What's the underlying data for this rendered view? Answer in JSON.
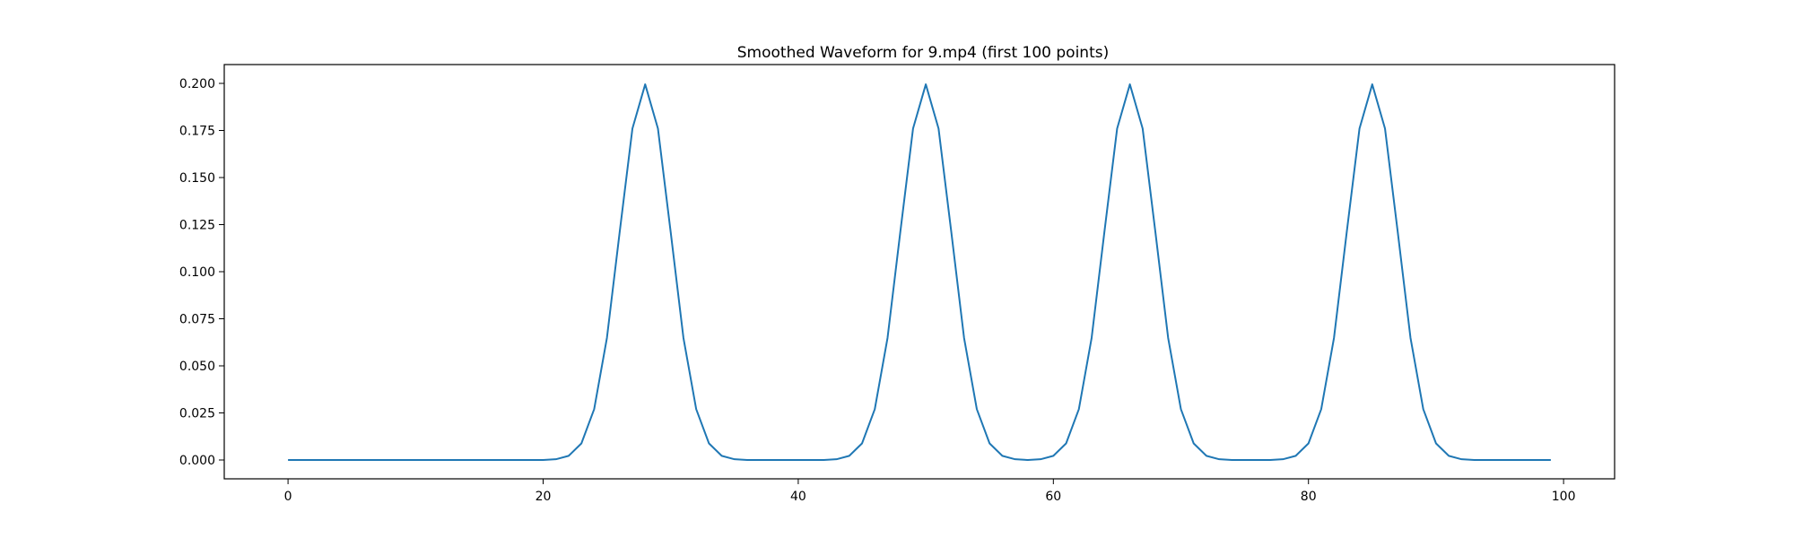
{
  "chart_data": {
    "type": "line",
    "title": "Smoothed Waveform for 9.mp4 (first 100 points)",
    "xlabel": "",
    "ylabel": "",
    "xlim": [
      -5,
      104
    ],
    "ylim": [
      -0.01,
      0.21
    ],
    "xticks": [
      0,
      20,
      40,
      60,
      80,
      100
    ],
    "xtick_labels": [
      "0",
      "20",
      "40",
      "60",
      "80",
      "100"
    ],
    "yticks": [
      0.0,
      0.025,
      0.05,
      0.075,
      0.1,
      0.125,
      0.15,
      0.175,
      0.2
    ],
    "ytick_labels": [
      "0.000",
      "0.025",
      "0.050",
      "0.075",
      "0.100",
      "0.125",
      "0.150",
      "0.175",
      "0.200"
    ],
    "grid": false,
    "series": [
      {
        "color": "#1f77b4",
        "x": [
          0,
          1,
          2,
          3,
          4,
          5,
          6,
          7,
          8,
          9,
          10,
          11,
          12,
          13,
          14,
          15,
          16,
          17,
          18,
          19,
          20,
          21,
          22,
          23,
          24,
          25,
          26,
          27,
          28,
          29,
          30,
          31,
          32,
          33,
          34,
          35,
          36,
          37,
          38,
          39,
          40,
          41,
          42,
          43,
          44,
          45,
          46,
          47,
          48,
          49,
          50,
          51,
          52,
          53,
          54,
          55,
          56,
          57,
          58,
          59,
          60,
          61,
          62,
          63,
          64,
          65,
          66,
          67,
          68,
          69,
          70,
          71,
          72,
          73,
          74,
          75,
          76,
          77,
          78,
          79,
          80,
          81,
          82,
          83,
          84,
          85,
          86,
          87,
          88,
          89,
          90,
          91,
          92,
          93,
          94,
          95,
          96,
          97,
          98,
          99
        ],
        "y": [
          0,
          0,
          0,
          0,
          0,
          0,
          0,
          0,
          0,
          0,
          0,
          0,
          0,
          0,
          0,
          0,
          0,
          0,
          0,
          0,
          0,
          0.0004,
          0.0022,
          0.0088,
          0.027,
          0.0648,
          0.121,
          0.176,
          0.1995,
          0.176,
          0.121,
          0.0648,
          0.027,
          0.0088,
          0.0022,
          0.0004,
          0,
          0,
          0,
          0,
          0,
          0,
          0,
          0.0004,
          0.0022,
          0.0088,
          0.027,
          0.0648,
          0.121,
          0.176,
          0.1995,
          0.176,
          0.121,
          0.0648,
          0.027,
          0.0088,
          0.0022,
          0.0004,
          0,
          0.0004,
          0.0022,
          0.0088,
          0.027,
          0.0648,
          0.121,
          0.176,
          0.1995,
          0.176,
          0.121,
          0.0648,
          0.027,
          0.0088,
          0.0022,
          0.0004,
          0,
          0,
          0,
          0,
          0.0004,
          0.0022,
          0.0088,
          0.027,
          0.0648,
          0.121,
          0.176,
          0.1995,
          0.176,
          0.121,
          0.0648,
          0.027,
          0.0088,
          0.0022,
          0.0004,
          0,
          0,
          0,
          0,
          0,
          0,
          0
        ]
      }
    ]
  }
}
